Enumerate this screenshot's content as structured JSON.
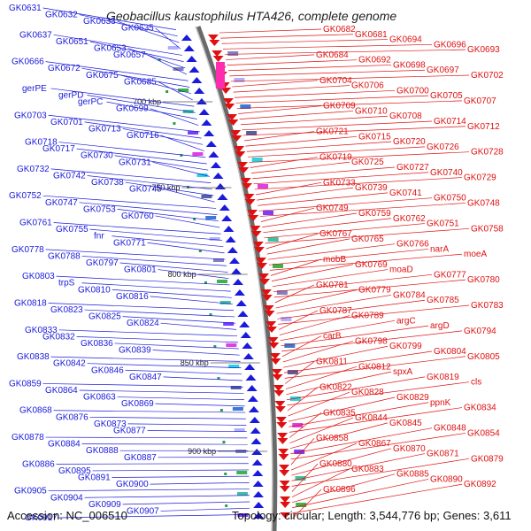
{
  "title": "Geobacillus kaustophilus HTA426, complete genome",
  "accession": "Accession: NC_006510",
  "topology": "Topology: circular; Length: 3,544,776 bp; Genes: 3,611",
  "colors": {
    "forward": "#1a1adc",
    "reverse": "#e01010",
    "backbone": "#888888"
  },
  "kbp_marks": [
    "700 kbp",
    "750 kbp",
    "800 kbp",
    "850 kbp",
    "900 kbp"
  ],
  "left_labels": [
    "GK0631",
    "GK0632",
    "GK0633",
    "GK0635",
    "GK0637",
    "GK0651",
    "GK0653",
    "GK0657",
    "GK0666",
    "GK0672",
    "GK0675",
    "GK0685",
    "gerPE",
    "gerPD",
    "gerPC",
    "GK0699",
    "GK0703",
    "GK0701",
    "GK0713",
    "GK0716",
    "GK0718",
    "GK0717",
    "GK0730",
    "GK0731",
    "GK0732",
    "GK0742",
    "GK0738",
    "GK0745",
    "GK0752",
    "GK0747",
    "GK0753",
    "GK0760",
    "GK0761",
    "GK0755",
    "fnr",
    "GK0771",
    "GK0778",
    "GK0788",
    "GK0797",
    "GK0801",
    "GK0803",
    "trpS",
    "GK0810",
    "GK0816",
    "GK0818",
    "GK0823",
    "GK0825",
    "GK0824",
    "GK0833",
    "GK0832",
    "GK0836",
    "GK0839",
    "GK0838",
    "GK0842",
    "GK0846",
    "GK0847",
    "GK0859",
    "GK0864",
    "GK0863",
    "GK0869",
    "GK0868",
    "GK0876",
    "GK0873",
    "GK0877",
    "GK0878",
    "GK0884",
    "GK0888",
    "GK0887",
    "GK0886",
    "GK0895",
    "GK0891",
    "GK0900",
    "GK0905",
    "GK0904",
    "GK0909",
    "GK0907",
    "GK0917"
  ],
  "right_labels": [
    "GK0682",
    "GK0681",
    "GK0694",
    "GK0696",
    "GK0693",
    "GK0684",
    "GK0692",
    "GK0698",
    "GK0697",
    "GK0702",
    "GK0704",
    "GK0706",
    "GK0700",
    "GK0705",
    "GK0707",
    "GK0709",
    "GK0710",
    "GK0708",
    "GK0714",
    "GK0712",
    "GK0721",
    "GK0715",
    "GK0720",
    "GK0726",
    "GK0728",
    "GK0719",
    "GK0725",
    "GK0727",
    "GK0740",
    "GK0729",
    "GK0733",
    "GK0739",
    "GK0741",
    "GK0750",
    "GK0748",
    "GK0749",
    "GK0759",
    "GK0762",
    "GK0751",
    "GK0758",
    "GK0767",
    "GK0765",
    "GK0766",
    "narA",
    "moeA",
    "mobB",
    "GK0769",
    "moaD",
    "GK0777",
    "GK0780",
    "GK0781",
    "GK0779",
    "GK0784",
    "GK0785",
    "GK0783",
    "GK0787",
    "GK0789",
    "argC",
    "argD",
    "GK0794",
    "carB",
    "GK0798",
    "GK0799",
    "GK0804",
    "GK0805",
    "GK0811",
    "GK0812",
    "spxA",
    "GK0819",
    "cls",
    "GK0822",
    "GK0828",
    "GK0829",
    "ppnK",
    "GK0834",
    "GK0835",
    "GK0844",
    "GK0845",
    "GK0848",
    "GK0854",
    "GK0858",
    "GK0867",
    "GK0870",
    "GK0871",
    "GK0879",
    "GK0880",
    "GK0883",
    "GK0885",
    "GK0890",
    "GK0892",
    "GK0896"
  ]
}
